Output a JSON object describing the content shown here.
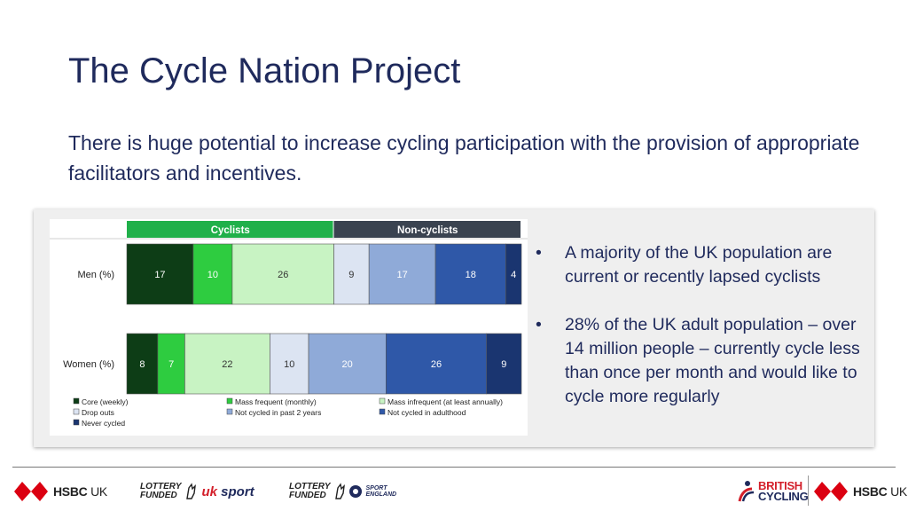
{
  "slide": {
    "title": "The Cycle Nation Project",
    "subtitle": "There is huge potential to increase cycling participation with the provision of appropriate facilitators and incentives."
  },
  "chart_data": {
    "type": "bar",
    "orientation": "horizontal-stacked",
    "group_headers": [
      {
        "label": "Cyclists",
        "color": "#20b04a"
      },
      {
        "label": "Non-cyclists",
        "color": "#3a4350"
      }
    ],
    "categories": [
      "Men (%)",
      "Women (%)"
    ],
    "series": [
      {
        "name": "Core (weekly)",
        "color": "#0d3d16",
        "label_color": "#ffffff",
        "values": [
          17,
          8
        ]
      },
      {
        "name": "Mass frequent (monthly)",
        "color": "#2ecc40",
        "label_color": "#ffffff",
        "values": [
          10,
          7
        ]
      },
      {
        "name": "Mass infrequent (at least annually)",
        "color": "#c8f3c3",
        "label_color": "#333333",
        "values": [
          26,
          22
        ]
      },
      {
        "name": "Drop outs",
        "color": "#dce4f2",
        "label_color": "#333333",
        "values": [
          9,
          10
        ]
      },
      {
        "name": "Not cycled in past 2 years",
        "color": "#8faad8",
        "label_color": "#ffffff",
        "values": [
          17,
          20
        ]
      },
      {
        "name": "Not cycled in adulthood",
        "color": "#2f58a8",
        "label_color": "#ffffff",
        "values": [
          18,
          26
        ]
      },
      {
        "name": "Never cycled",
        "color": "#1a3570",
        "label_color": "#ffffff",
        "values": [
          4,
          9
        ]
      }
    ]
  },
  "bullets": [
    "A majority of the UK population are current or recently lapsed cyclists",
    "28% of the UK adult population – over 14 million people – currently cycle less than once per month and would like to cycle more regularly"
  ],
  "bullet_symbol": "•",
  "footer": {
    "hsbc": {
      "brand": "HSBC",
      "suffix": " UK"
    },
    "lottery_1": {
      "line1": "LOTTERY",
      "line2": "FUNDED",
      "partner_a": "uk",
      "partner_b": " sport"
    },
    "lottery_2": {
      "line1": "LOTTERY",
      "line2": "FUNDED",
      "partner_line1": "SPORT",
      "partner_line2": "ENGLAND"
    },
    "british_cycling": {
      "line1": "BRITISH",
      "line2": "CYCLING"
    }
  }
}
